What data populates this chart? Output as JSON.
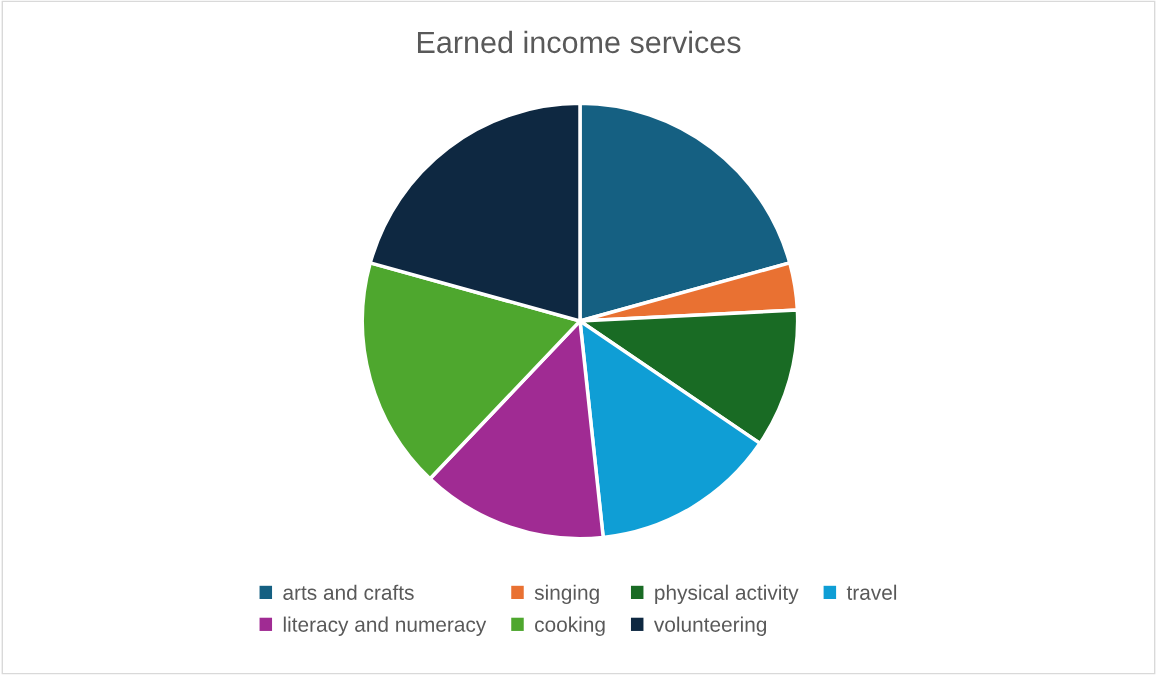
{
  "chart_data": {
    "type": "pie",
    "title": "Earned income services",
    "categories": [
      "arts and crafts",
      "singing",
      "physical activity",
      "travel",
      "literacy and numeracy",
      "cooking",
      "volunteering"
    ],
    "values": [
      20.7,
      3.5,
      10.3,
      13.8,
      13.8,
      17.2,
      20.7
    ],
    "colors": [
      "#156082",
      "#e97132",
      "#196b24",
      "#0f9ed5",
      "#a02b93",
      "#4ea72e",
      "#0e2841"
    ],
    "legend": "bottom"
  }
}
